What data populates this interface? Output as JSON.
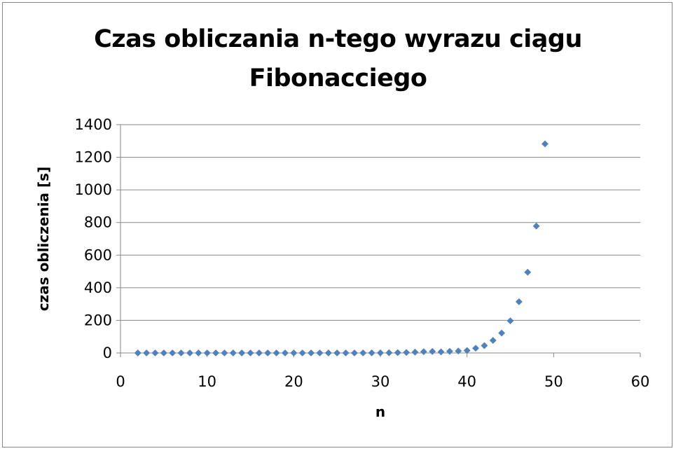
{
  "chart_data": {
    "type": "scatter",
    "title_line1": "Czas obliczania n-tego wyrazu ciągu",
    "title_line2": "Fibonacciego",
    "xlabel": "n",
    "ylabel": "czas obliczenia [s]",
    "xlim": [
      0,
      60
    ],
    "ylim": [
      0,
      1400
    ],
    "xticks": [
      "0",
      "10",
      "20",
      "30",
      "40",
      "50",
      "60"
    ],
    "yticks": [
      "0",
      "200",
      "400",
      "600",
      "800",
      "1000",
      "1200",
      "1400"
    ],
    "grid": "horizontal",
    "legend": "none",
    "marker_color": "#4f81bd",
    "x": [
      2,
      3,
      4,
      5,
      6,
      7,
      8,
      9,
      10,
      11,
      12,
      13,
      14,
      15,
      16,
      17,
      18,
      19,
      20,
      21,
      22,
      23,
      24,
      25,
      26,
      27,
      28,
      29,
      30,
      31,
      32,
      33,
      34,
      35,
      36,
      37,
      38,
      39,
      40,
      41,
      42,
      43,
      44,
      45,
      46,
      47,
      48,
      49
    ],
    "y": [
      0,
      0,
      0,
      0,
      0,
      0,
      0,
      0,
      0,
      0,
      0,
      0,
      0,
      0,
      0,
      0,
      0,
      0,
      0,
      0,
      0,
      0,
      0,
      0,
      0,
      0,
      0.3,
      0.5,
      0.8,
      1.2,
      1.9,
      3,
      4.9,
      7.9,
      9.2,
      6.7,
      10,
      12,
      15,
      29,
      45,
      77,
      122,
      197,
      314,
      495,
      778,
      1282
    ]
  }
}
